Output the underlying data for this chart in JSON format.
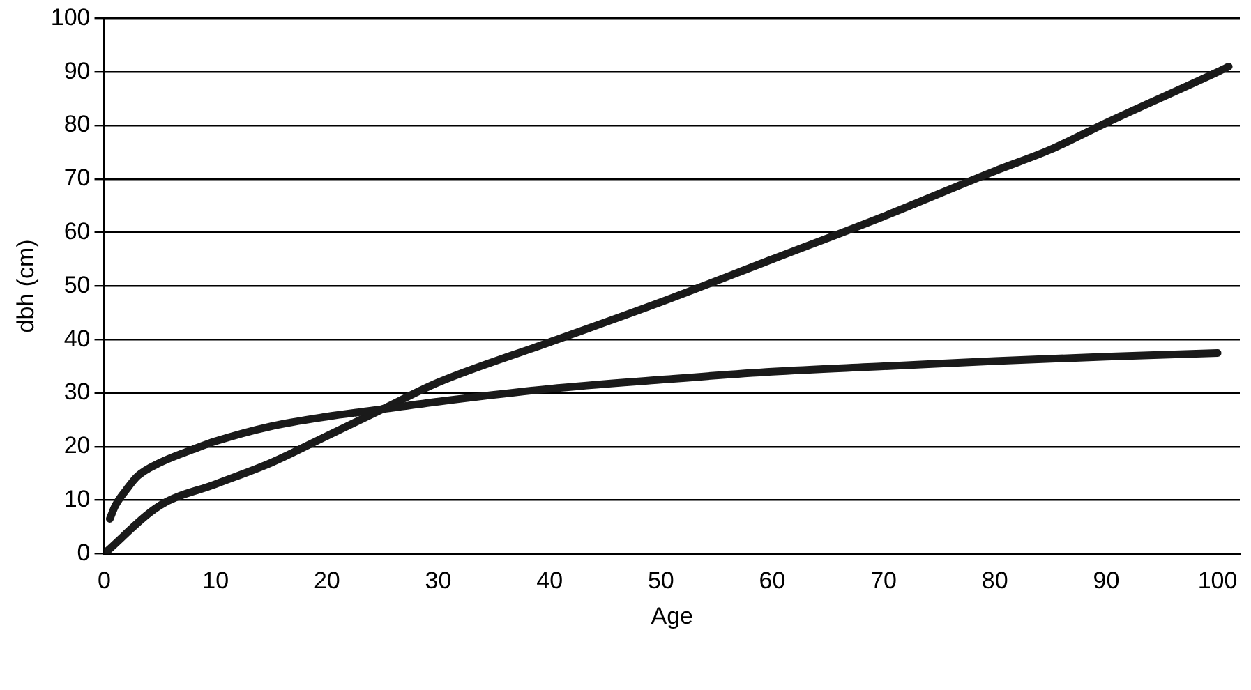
{
  "chart_data": {
    "type": "line",
    "xlabel": "Age",
    "ylabel": "dbh (cm)",
    "xlim": [
      0,
      102
    ],
    "xticks": [
      0,
      10,
      20,
      30,
      40,
      50,
      60,
      70,
      80,
      90,
      100
    ],
    "ylim": [
      0,
      100
    ],
    "yticks": [
      0,
      10,
      20,
      30,
      40,
      50,
      60,
      70,
      80,
      90,
      100
    ],
    "grid": "y",
    "legend": false,
    "marker": "none",
    "line_style": "solid",
    "series": [
      {
        "color": "#1a1a1a",
        "x": [
          0.5,
          1,
          2,
          3,
          5,
          8,
          10,
          15,
          20,
          25,
          30,
          40,
          50,
          60,
          70,
          80,
          90,
          100
        ],
        "values": [
          6.5,
          9,
          12,
          14.5,
          17,
          19.5,
          21,
          23.8,
          25.6,
          27,
          28.4,
          30.8,
          32.5,
          34,
          35,
          36,
          36.8,
          37.5
        ]
      },
      {
        "color": "#1a1a1a",
        "x": [
          0,
          5,
          10,
          15,
          20,
          25,
          30,
          40,
          50,
          60,
          70,
          80,
          85,
          90,
          100,
          101
        ],
        "values": [
          0,
          9,
          13,
          17,
          22,
          27,
          32,
          39.5,
          47,
          55,
          63,
          71.5,
          75.5,
          80.5,
          90,
          91
        ]
      }
    ]
  }
}
